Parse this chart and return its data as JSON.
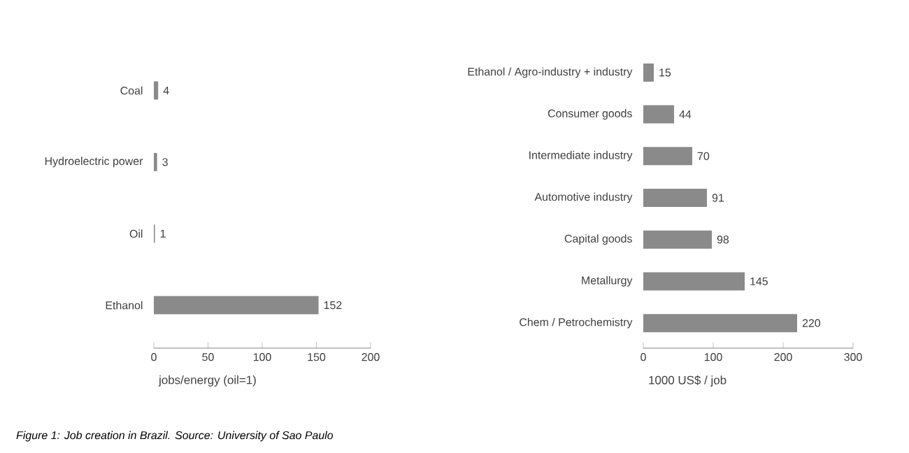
{
  "chart_data": [
    {
      "type": "bar",
      "orientation": "horizontal",
      "categories": [
        "Coal",
        "Hydroelectric power",
        "Oil",
        "Ethanol"
      ],
      "values": [
        4,
        3,
        1,
        152
      ],
      "color": "#8a8a8a",
      "xlim": [
        0,
        200
      ],
      "xticks": [
        0,
        50,
        100,
        150,
        200
      ],
      "xlabel": "jobs/energy (oil=1)",
      "data_labels": true,
      "annotations": [
        "Figure 1: Job creation in Brazil. Source: University of Sao Paulo"
      ]
    },
    {
      "type": "bar",
      "orientation": "horizontal",
      "categories": [
        "Ethanol / Agro-industry + industry",
        "Consumer goods",
        "Intermediate industry",
        "Automotive industry",
        "Capital goods",
        "Metallurgy",
        "Chem / Petrochemistry"
      ],
      "values": [
        15,
        44,
        70,
        91,
        98,
        145,
        220
      ],
      "color": "#8a8a8a",
      "xlim": [
        0,
        300
      ],
      "xticks": [
        0,
        100,
        200,
        300
      ],
      "xlabel": "1000 US$ / job",
      "data_labels": true
    }
  ]
}
